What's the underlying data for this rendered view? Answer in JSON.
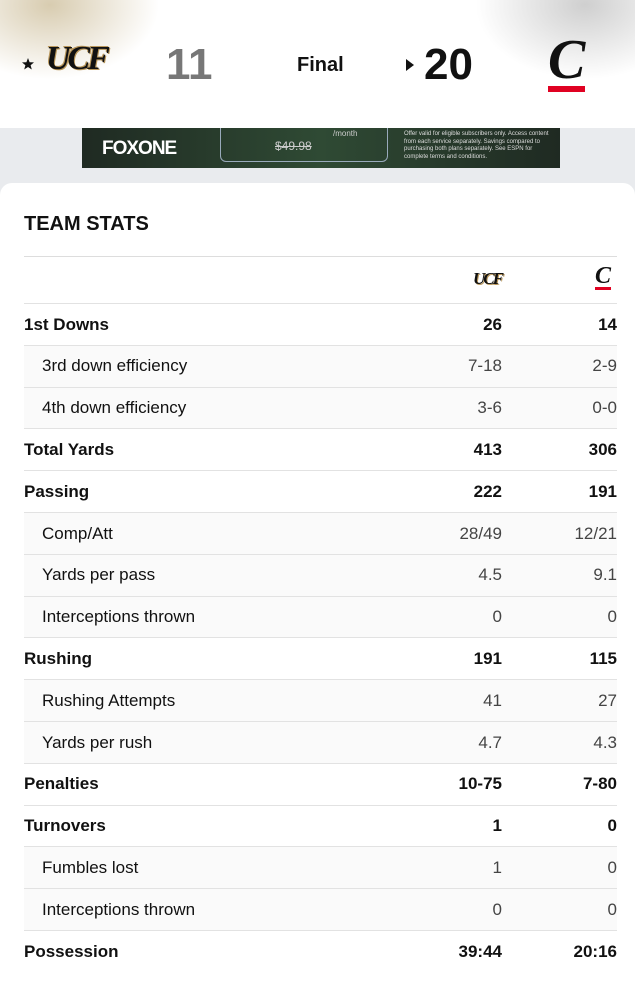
{
  "header": {
    "away_logo": "UCF",
    "away_score": "11",
    "status": "Final",
    "home_score": "20",
    "home_logo": "C"
  },
  "ad": {
    "brand": "FOXONE",
    "old_price": "$49.98",
    "per": "/month",
    "fine_print": "Offer valid for eligible subscribers only. Access content from each service separately. Savings compared to purchasing both plans separately. See ESPN for complete terms and conditions."
  },
  "stats": {
    "title": "TEAM STATS",
    "away_logo": "UCF",
    "home_logo": "C",
    "rows": [
      {
        "label": "1st Downs",
        "away": "26",
        "home": "14",
        "sub": false
      },
      {
        "label": "3rd down efficiency",
        "away": "7-18",
        "home": "2-9",
        "sub": true
      },
      {
        "label": "4th down efficiency",
        "away": "3-6",
        "home": "0-0",
        "sub": true
      },
      {
        "label": "Total Yards",
        "away": "413",
        "home": "306",
        "sub": false
      },
      {
        "label": "Passing",
        "away": "222",
        "home": "191",
        "sub": false
      },
      {
        "label": "Comp/Att",
        "away": "28/49",
        "home": "12/21",
        "sub": true
      },
      {
        "label": "Yards per pass",
        "away": "4.5",
        "home": "9.1",
        "sub": true
      },
      {
        "label": "Interceptions thrown",
        "away": "0",
        "home": "0",
        "sub": true
      },
      {
        "label": "Rushing",
        "away": "191",
        "home": "115",
        "sub": false
      },
      {
        "label": "Rushing Attempts",
        "away": "41",
        "home": "27",
        "sub": true
      },
      {
        "label": "Yards per rush",
        "away": "4.7",
        "home": "4.3",
        "sub": true
      },
      {
        "label": "Penalties",
        "away": "10-75",
        "home": "7-80",
        "sub": false
      },
      {
        "label": "Turnovers",
        "away": "1",
        "home": "0",
        "sub": false
      },
      {
        "label": "Fumbles lost",
        "away": "1",
        "home": "0",
        "sub": true
      },
      {
        "label": "Interceptions thrown",
        "away": "0",
        "home": "0",
        "sub": true
      },
      {
        "label": "Possession",
        "away": "39:44",
        "home": "20:16",
        "sub": false
      }
    ]
  }
}
